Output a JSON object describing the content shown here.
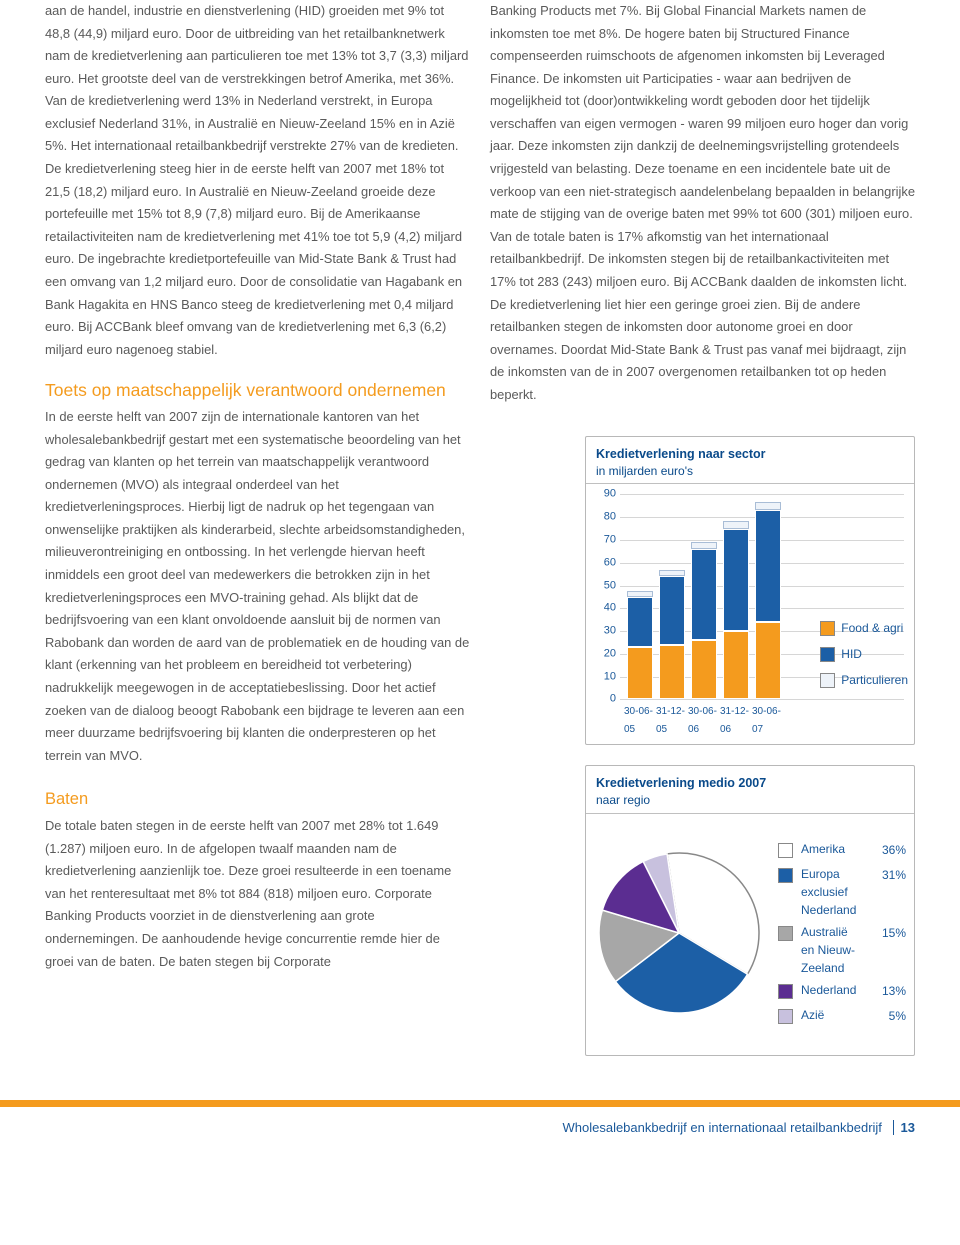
{
  "left": {
    "p1": "aan de handel, industrie en dienstverlening (HID) groeiden met 9% tot 48,8 (44,9) miljard euro. Door de uitbreiding van het retailbanknetwerk nam de kredietverlening aan particulieren toe met 13% tot 3,7 (3,3) miljard euro. Het grootste deel van de verstrekkingen betrof Amerika, met 36%. Van de kredietverlening werd 13% in Nederland verstrekt, in Europa exclusief Nederland 31%, in Australië en Nieuw-Zeeland 15% en in Azië 5%. Het internationaal retailbankbedrijf verstrekte 27% van de kredieten. De kredietverlening steeg hier in de eerste helft van 2007 met 18% tot 21,5 (18,2) miljard euro. In Australië en Nieuw-Zeeland groeide deze portefeuille met 15% tot 8,9 (7,8) miljard euro. Bij de Amerikaanse retailactiviteiten nam de kredietverlening met 41% toe tot 5,9 (4,2) miljard euro. De ingebrachte kredietportefeuille van Mid-State Bank & Trust had een omvang van 1,2 miljard euro. Door de consolidatie van Hagabank en Bank Hagakita en HNS Banco steeg de kredietverlening met 0,4 miljard euro. Bij ACCBank bleef omvang van de kredietverlening met 6,3 (6,2) miljard euro nagenoeg stabiel.",
    "h2": "Toets op maatschappelijk verantwoord ondernemen",
    "p2": "In de eerste helft van 2007 zijn de internationale kantoren van het wholesalebankbedrijf gestart met een systematische beoordeling van het gedrag van klanten op het terrein van maatschappelijk verantwoord ondernemen (MVO) als integraal onderdeel van het kredietverleningsproces. Hierbij ligt de nadruk op het tegengaan van onwenselijke praktijken als kinderarbeid, slechte arbeidsomstandigheden, milieuverontreiniging en ontbossing. In het verlengde hiervan heeft inmiddels een groot deel van medewerkers die betrokken zijn in het kredietverleningsproces een MVO-training gehad. Als blijkt dat de bedrijfsvoering van een klant onvoldoende aansluit bij de normen van Rabobank dan worden de aard van de problematiek en de houding van de klant (erkenning van het probleem en bereidheid tot verbetering) nadrukkelijk meegewogen in de acceptatiebeslissing. Door het actief zoeken van de dialoog beoogt Rabobank een bijdrage te leveren aan een meer duurzame bedrijfsvoering bij klanten die onderpresteren op het terrein van MVO.",
    "h3": "Baten",
    "p3": "De totale baten stegen in de eerste helft van 2007 met 28% tot 1.649 (1.287) miljoen euro. In de afgelopen twaalf maanden nam de kredietverlening aanzienlijk toe. Deze groei resulteerde in een toename van het renteresultaat met 8% tot 884 (818) miljoen euro. Corporate Banking Products voorziet in de dienstverlening aan grote ondernemingen. De aanhoudende hevige concurrentie remde hier de groei van de baten. De baten stegen bij Corporate"
  },
  "right": {
    "p1": "Banking Products met 7%. Bij Global Financial Markets namen de inkomsten toe met 8%. De hogere baten bij Structured Finance compenseerden ruimschoots de afgenomen inkomsten bij Leveraged Finance. De inkomsten uit Participaties - waar aan bedrijven de mogelijkheid tot (door)ontwikkeling wordt geboden door het tijdelijk verschaffen van eigen vermogen - waren 99 miljoen euro hoger dan vorig jaar. Deze inkomsten zijn dankzij de deelnemingsvrijstelling grotendeels vrijgesteld van belasting. Deze toename en een incidentele bate uit de verkoop van een niet-strategisch aandelenbelang bepaalden in belangrijke mate de stijging van de overige baten met 99% tot 600 (301) miljoen euro. Van de totale baten is 17% afkomstig van het internationaal retailbankbedrijf. De inkomsten stegen bij de retailbankactiviteiten met 17% tot 283 (243) miljoen euro. Bij ACCBank daalden de inkomsten licht. De kredietverlening liet hier een geringe groei zien. Bij de andere retailbanken stegen de inkomsten door autonome groei en door overnames. Doordat Mid-State Bank & Trust pas vanaf mei bijdraagt, zijn de inkomsten van de in 2007 overgenomen retailbanken tot op heden beperkt."
  },
  "bar_chart": {
    "title": "Kredietverlening naar sector",
    "subtitle": "in miljarden euro's",
    "max": 90,
    "ticks": [
      90,
      80,
      70,
      60,
      50,
      40,
      30,
      20,
      10,
      0
    ],
    "categories": [
      "30-06-05",
      "31-12-05",
      "30-06-06",
      "31-12-06",
      "30-06-07"
    ],
    "series": {
      "particulieren": {
        "label": "Particulieren",
        "color": "#eef3f9",
        "border": "#a9bdd6"
      },
      "hid": {
        "label": "HID",
        "color": "#1c5fa6"
      },
      "food": {
        "label": "Food & agri",
        "color": "#f49b1e"
      }
    },
    "stacks": [
      {
        "particulieren": 2.5,
        "hid": 22,
        "food": 23
      },
      {
        "particulieren": 2.8,
        "hid": 30,
        "food": 24
      },
      {
        "particulieren": 3.0,
        "hid": 40,
        "food": 26
      },
      {
        "particulieren": 3.3,
        "hid": 45,
        "food": 30
      },
      {
        "particulieren": 3.7,
        "hid": 49,
        "food": 34
      }
    ]
  },
  "pie_chart": {
    "title": "Kredietverlening medio 2007",
    "subtitle": "naar regio",
    "slices": [
      {
        "label": "Amerika",
        "pct": 36,
        "color": "#ffffff",
        "border": "#888"
      },
      {
        "label": "Europa exclusief Nederland",
        "short": "Europa",
        "pct": 31,
        "color": "#1c5fa6"
      },
      {
        "label": "Australië en Nieuw-Zeeland",
        "pct": 15,
        "color": "#a7a7a7"
      },
      {
        "label": "Nederland",
        "pct": 13,
        "color": "#5b2d91"
      },
      {
        "label": "Azië",
        "pct": 5,
        "color": "#c8c1de"
      }
    ]
  },
  "footer": {
    "text": "Wholesalebankbedrijf en internationaal retailbankbedrijf",
    "page": "13"
  }
}
